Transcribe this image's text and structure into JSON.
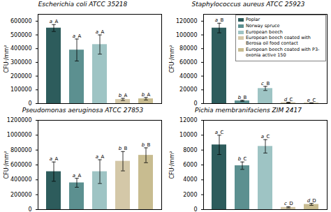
{
  "chart_data": [
    {
      "type": "bar",
      "title": "Escherichia coli ATCC 35218",
      "ylabel": "CFU·/mm²",
      "categories": [
        "Poplar",
        "Norway spruce",
        "European beech",
        "European beech coated with Berosa oil food contact",
        "European beech coated with P3-oxonia active 150"
      ],
      "colors": [
        "#2d5c5c",
        "#5c9090",
        "#9ec4c4",
        "#d4c8a8",
        "#c8bc90"
      ],
      "values": [
        550000,
        390000,
        430000,
        30000,
        35000
      ],
      "errors": [
        25000,
        80000,
        70000,
        8000,
        9000
      ],
      "annotations": [
        [
          "a",
          "A"
        ],
        [
          "a",
          "A"
        ],
        [
          "a",
          "A"
        ],
        [
          "b",
          "A"
        ],
        [
          "b",
          "A"
        ]
      ],
      "ylim": [
        0,
        650000
      ],
      "yticks": [
        0,
        100000,
        200000,
        300000,
        400000,
        500000,
        600000
      ],
      "tick_labels": "y"
    },
    {
      "type": "bar",
      "title": "Staphylococcus aureus ATCC 25923",
      "ylabel": "CFU·/mm²",
      "categories": [
        "Poplar",
        "Norway spruce",
        "European beech",
        "European beech coated with Berosa oil food contact",
        "European beech coated with P3-oxonia active 150"
      ],
      "colors": [
        "#2d5c5c",
        "#5c9090",
        "#9ec4c4",
        "#d4c8a8",
        "#c8bc90"
      ],
      "values": [
        110000,
        4000,
        22000,
        1500,
        800
      ],
      "errors": [
        7000,
        800,
        3000,
        400,
        200
      ],
      "annotations": [
        [
          "a",
          "B"
        ],
        [
          "b",
          "B"
        ],
        [
          "c",
          "B"
        ],
        [
          "d",
          "C"
        ],
        [
          "e",
          "C"
        ]
      ],
      "ylim": [
        0,
        130000
      ],
      "yticks": [
        0,
        20000,
        40000,
        60000,
        80000,
        100000,
        120000
      ],
      "tick_labels": "y",
      "legend": "upper right"
    },
    {
      "type": "bar",
      "title": "Pseudomonas aeruginosa ATCC 27853",
      "ylabel": "CFU·/mm²",
      "categories": [
        "Poplar",
        "Norway spruce",
        "European beech",
        "European beech coated with Berosa oil food contact",
        "European beech coated with P3-oxonia active 150"
      ],
      "colors": [
        "#2d5c5c",
        "#5c9090",
        "#9ec4c4",
        "#d4c8a8",
        "#c8bc90"
      ],
      "values": [
        510000,
        360000,
        510000,
        650000,
        730000
      ],
      "errors": [
        130000,
        60000,
        160000,
        130000,
        100000
      ],
      "annotations": [
        [
          "a",
          "A"
        ],
        [
          "a",
          "A"
        ],
        [
          "a",
          "A"
        ],
        [
          "b",
          "B"
        ],
        [
          "b",
          "B"
        ]
      ],
      "ylim": [
        0,
        1200000
      ],
      "yticks": [
        0,
        200000,
        400000,
        600000,
        800000,
        1000000,
        1200000
      ],
      "tick_labels": "y"
    },
    {
      "type": "bar",
      "title": "Pichia membranifaciens ZIM 2417",
      "ylabel": "CFU·/mm²",
      "categories": [
        "Poplar",
        "Norway spruce",
        "European beech",
        "European beech coated with Berosa oil food contact",
        "European beech coated with P3-oxonia active 150"
      ],
      "colors": [
        "#2d5c5c",
        "#5c9090",
        "#9ec4c4",
        "#d4c8a8",
        "#c8bc90"
      ],
      "values": [
        8700,
        5900,
        8500,
        300,
        700
      ],
      "errors": [
        1300,
        500,
        900,
        80,
        130
      ],
      "annotations": [
        [
          "a",
          "C"
        ],
        [
          "b",
          "C"
        ],
        [
          "a",
          "C"
        ],
        [
          "c",
          "D"
        ],
        [
          "d",
          "D"
        ]
      ],
      "ylim": [
        0,
        12000
      ],
      "yticks": [
        0,
        2000,
        4000,
        6000,
        8000,
        10000,
        12000
      ],
      "tick_labels": "y"
    }
  ]
}
